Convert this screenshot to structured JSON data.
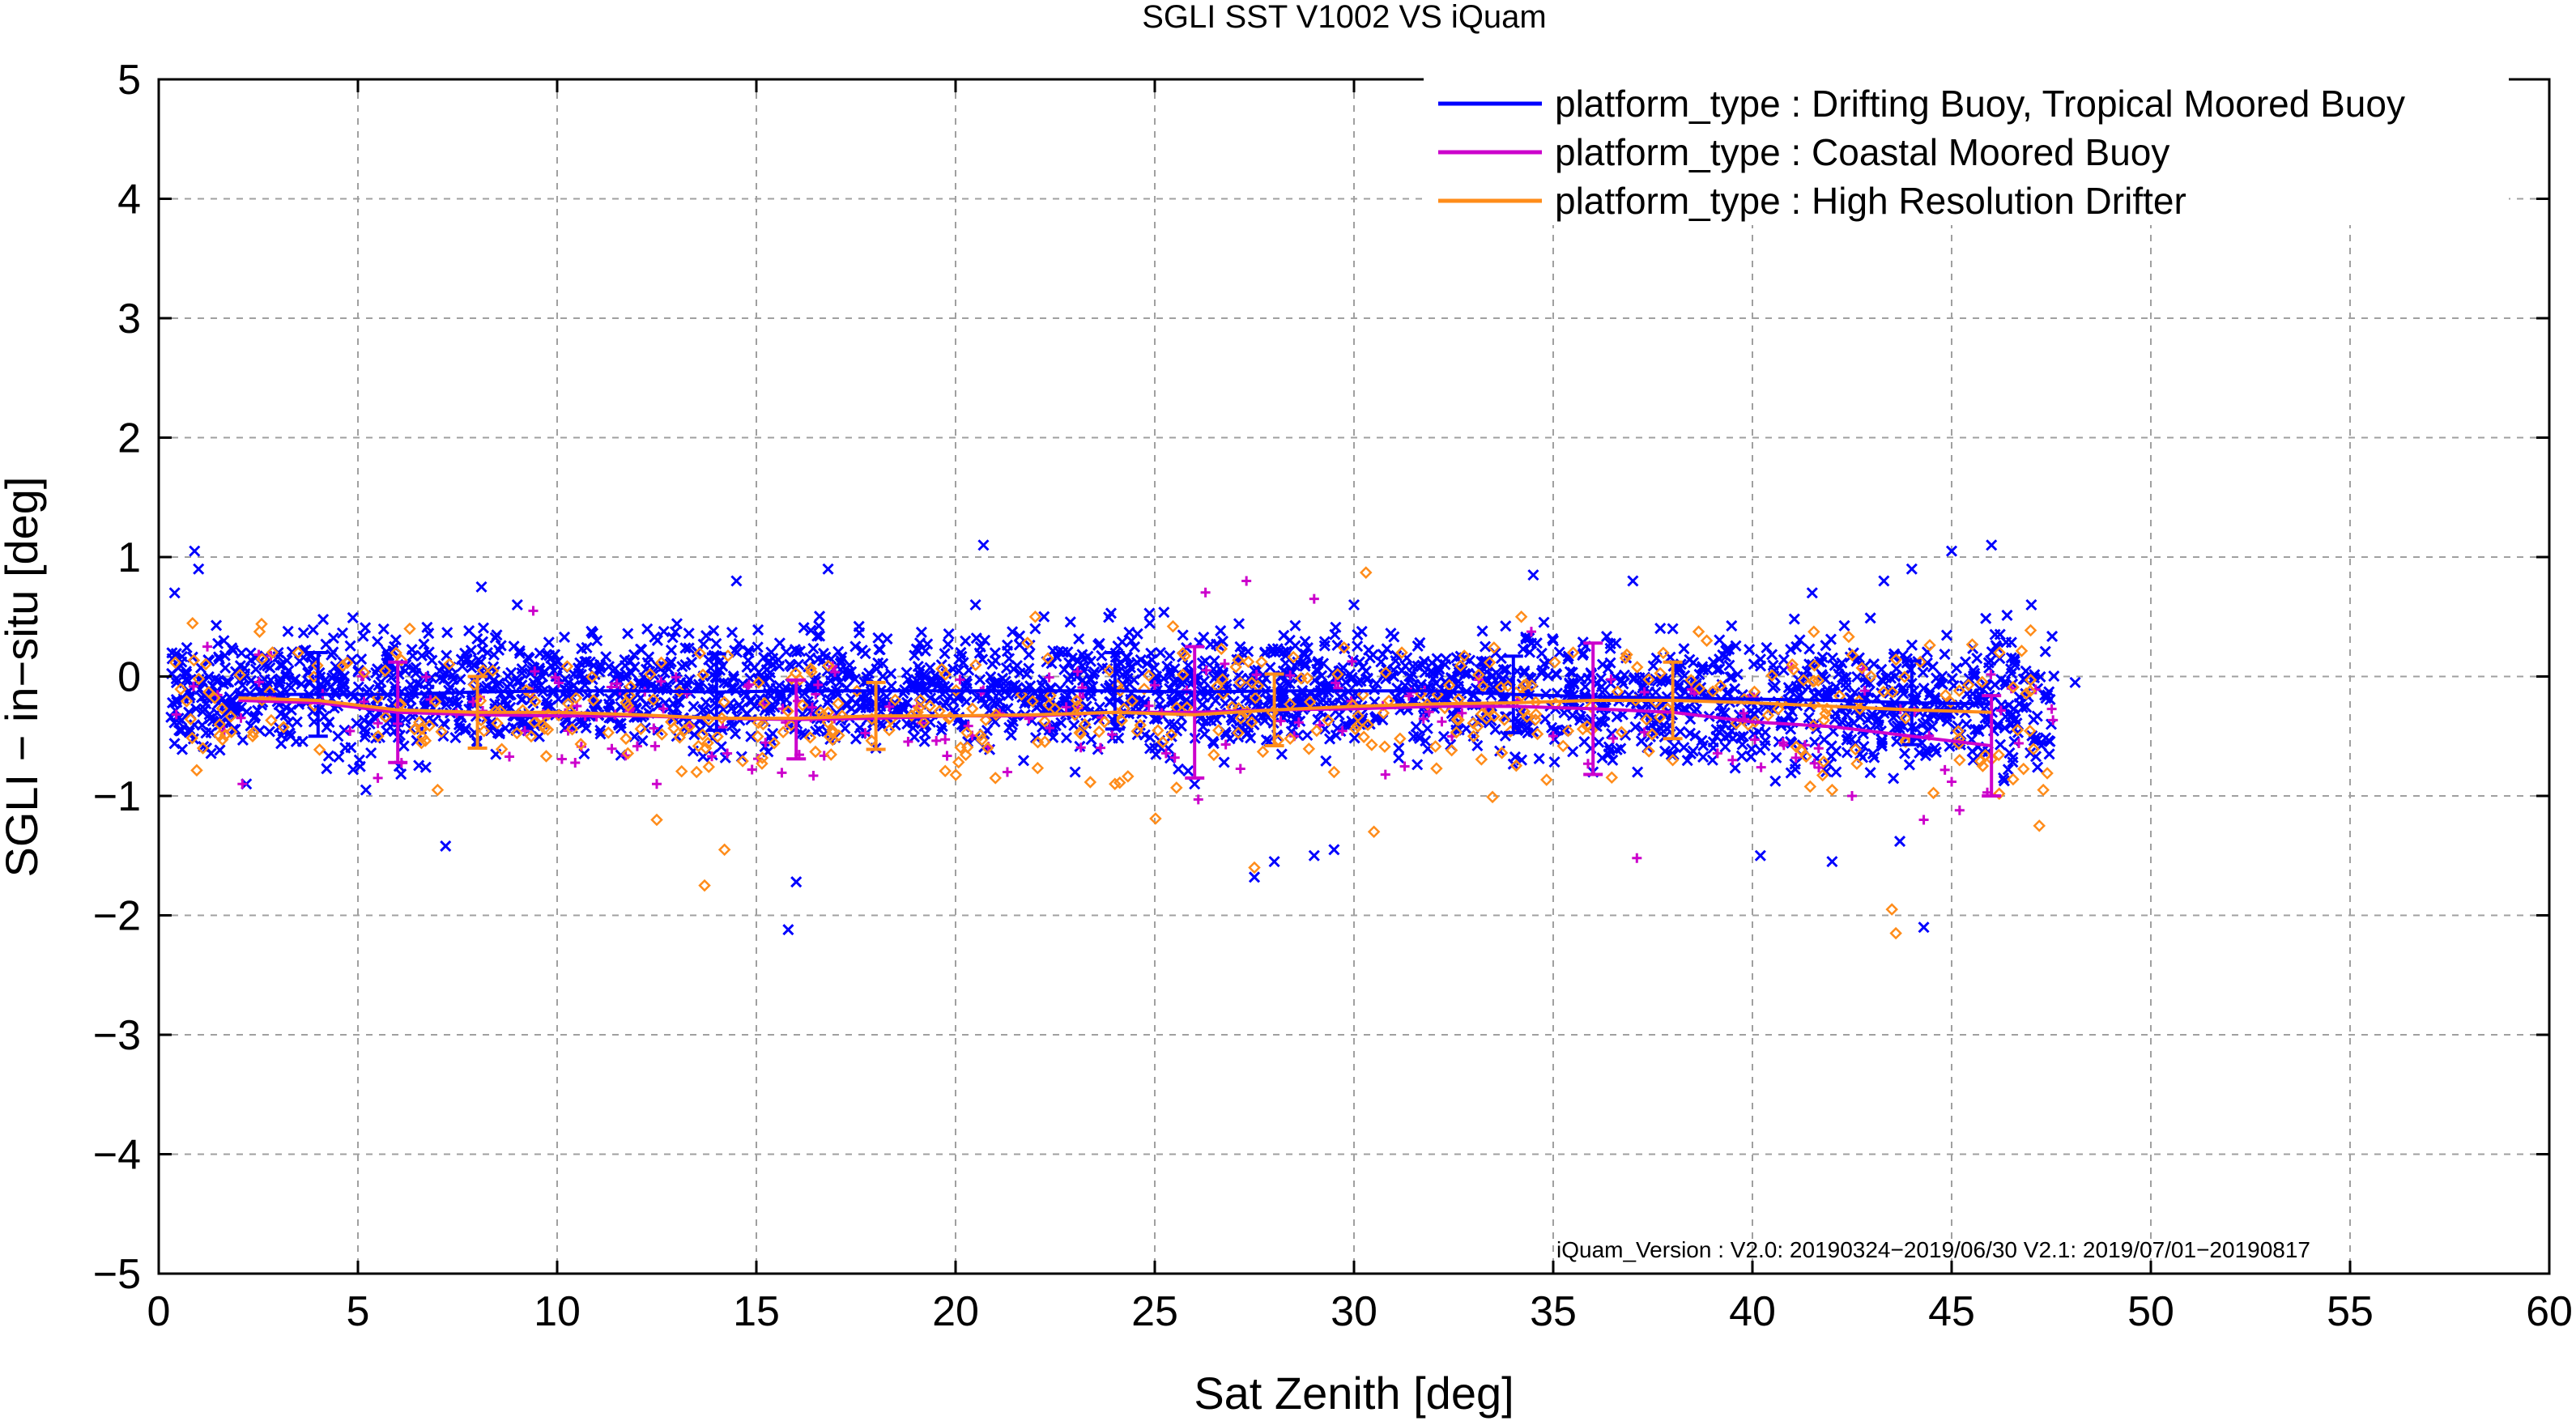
{
  "chart_data": {
    "type": "scatter",
    "title": "SGLI SST V1002 VS iQuam",
    "xlabel": "Sat Zenith [deg]",
    "ylabel": "SGLI − in−situ [deg]",
    "xlim": [
      0,
      60
    ],
    "ylim": [
      -5,
      5
    ],
    "x_ticks": [
      0,
      5,
      10,
      15,
      20,
      25,
      30,
      35,
      40,
      45,
      50,
      55,
      60
    ],
    "x_tick_labels": [
      "0",
      "5",
      "10",
      "15",
      "20",
      "25",
      "30",
      "35",
      "40",
      "45",
      "50",
      "55",
      "60"
    ],
    "y_ticks": [
      5,
      4,
      3,
      2,
      1,
      0,
      -1,
      -2,
      -3,
      -4,
      -5
    ],
    "y_tick_labels": [
      "5",
      "4",
      "3",
      "2",
      "1",
      "0",
      "−1",
      "−2",
      "−3",
      "−4",
      "−5"
    ],
    "grid": true,
    "legend_position": "top-right",
    "series": [
      {
        "name": "platform_type : Drifting Buoy, Tropical Moored Buoy",
        "color": "#0000ff",
        "marker": "x",
        "mean_x": [
          2,
          4,
          6,
          8,
          10,
          12,
          14,
          16,
          18,
          20,
          22,
          24,
          26,
          28,
          30,
          32,
          34,
          36,
          38,
          40,
          42,
          44,
          46
        ],
        "mean_y": [
          -0.15,
          -0.15,
          -0.15,
          -0.13,
          -0.12,
          -0.12,
          -0.13,
          -0.12,
          -0.12,
          -0.12,
          -0.12,
          -0.12,
          -0.13,
          -0.12,
          -0.12,
          -0.12,
          -0.15,
          -0.17,
          -0.18,
          -0.19,
          -0.2,
          -0.22,
          -0.23
        ],
        "std": [
          0.3,
          0.35,
          0.35,
          0.3,
          0.28,
          0.28,
          0.32,
          0.3,
          0.28,
          0.28,
          0.3,
          0.32,
          0.32,
          0.3,
          0.28,
          0.3,
          0.32,
          0.32,
          0.32,
          0.33,
          0.35,
          0.35,
          0.38
        ],
        "points": [
          [
            0.4,
            0.7
          ],
          [
            0.9,
            1.05
          ],
          [
            1.0,
            0.9
          ],
          [
            0.5,
            -0.35
          ],
          [
            1.2,
            -0.6
          ],
          [
            2.2,
            -0.9
          ],
          [
            3.0,
            0.2
          ],
          [
            4.5,
            -0.5
          ],
          [
            5.2,
            -0.95
          ],
          [
            7.2,
            -1.42
          ],
          [
            8.1,
            0.75
          ],
          [
            9.0,
            0.6
          ],
          [
            11.0,
            0.3
          ],
          [
            13.0,
            -0.5
          ],
          [
            14.5,
            0.8
          ],
          [
            15.5,
            -0.1
          ],
          [
            16.0,
            -1.72
          ],
          [
            15.8,
            -2.12
          ],
          [
            16.8,
            0.9
          ],
          [
            18.0,
            -0.6
          ],
          [
            20.5,
            0.6
          ],
          [
            20.7,
            1.1
          ],
          [
            22.0,
            0.4
          ],
          [
            23.0,
            -0.8
          ],
          [
            25.0,
            -0.6
          ],
          [
            26.0,
            -0.9
          ],
          [
            27.5,
            -1.68
          ],
          [
            28.0,
            -1.55
          ],
          [
            29.0,
            -1.5
          ],
          [
            29.5,
            -1.45
          ],
          [
            30.0,
            0.6
          ],
          [
            31.0,
            0.0
          ],
          [
            33.0,
            -0.5
          ],
          [
            34.5,
            0.85
          ],
          [
            35.0,
            0.3
          ],
          [
            36.0,
            -0.8
          ],
          [
            37.0,
            0.8
          ],
          [
            38.0,
            0.4
          ],
          [
            39.0,
            -0.7
          ],
          [
            40.2,
            -1.5
          ],
          [
            41.5,
            0.7
          ],
          [
            42.0,
            -1.55
          ],
          [
            43.3,
            0.8
          ],
          [
            43.7,
            -1.38
          ],
          [
            44.0,
            0.9
          ],
          [
            44.3,
            -2.1
          ],
          [
            45.0,
            1.05
          ],
          [
            45.7,
            -0.1
          ],
          [
            46.0,
            1.1
          ],
          [
            46.3,
            -0.85
          ],
          [
            47.0,
            0.6
          ],
          [
            47.5,
            -0.4
          ],
          [
            48.1,
            -0.05
          ]
        ]
      },
      {
        "name": "platform_type : Coastal Moored Buoy",
        "color": "#cc00cc",
        "marker": "+",
        "mean_x": [
          2,
          4,
          6,
          8,
          10,
          12,
          14,
          16,
          18,
          20,
          22,
          24,
          26,
          28,
          30,
          32,
          34,
          36,
          38,
          40,
          42,
          44,
          46
        ],
        "mean_y": [
          -0.2,
          -0.22,
          -0.3,
          -0.32,
          -0.33,
          -0.33,
          -0.35,
          -0.36,
          -0.35,
          -0.33,
          -0.33,
          -0.3,
          -0.3,
          -0.28,
          -0.27,
          -0.25,
          -0.25,
          -0.27,
          -0.3,
          -0.38,
          -0.42,
          -0.5,
          -0.58
        ],
        "std": [
          0.35,
          0.38,
          0.42,
          0.35,
          0.3,
          0.3,
          0.32,
          0.33,
          0.3,
          0.3,
          0.3,
          0.32,
          0.55,
          0.35,
          0.32,
          0.3,
          0.3,
          0.55,
          0.4,
          0.35,
          0.35,
          0.38,
          0.42
        ],
        "points": [
          [
            2.1,
            -0.9
          ],
          [
            5.5,
            -0.85
          ],
          [
            9.4,
            0.55
          ],
          [
            12.5,
            -0.9
          ],
          [
            21.3,
            -0.8
          ],
          [
            27.3,
            0.8
          ],
          [
            28.5,
            -0.5
          ],
          [
            29.0,
            0.65
          ],
          [
            34.1,
            -0.2
          ],
          [
            37.1,
            -1.52
          ],
          [
            39.5,
            -0.7
          ],
          [
            42.5,
            -1.0
          ],
          [
            44.3,
            -1.2
          ],
          [
            45.2,
            -1.12
          ],
          [
            46.5,
            -0.1
          ]
        ]
      },
      {
        "name": "platform_type : High Resolution Drifter",
        "color": "#ff8c1a",
        "marker": "diamond",
        "mean_x": [
          2,
          4,
          6,
          8,
          10,
          12,
          14,
          16,
          18,
          20,
          22,
          24,
          26,
          28,
          30,
          32,
          34,
          36,
          38,
          40,
          42,
          44,
          46
        ],
        "mean_y": [
          -0.18,
          -0.2,
          -0.28,
          -0.3,
          -0.3,
          -0.32,
          -0.35,
          -0.35,
          -0.33,
          -0.33,
          -0.32,
          -0.3,
          -0.32,
          -0.28,
          -0.25,
          -0.23,
          -0.22,
          -0.2,
          -0.2,
          -0.22,
          -0.25,
          -0.28,
          -0.3
        ],
        "std": [
          0.3,
          0.35,
          0.4,
          0.3,
          0.28,
          0.3,
          0.35,
          0.3,
          0.28,
          0.3,
          0.32,
          0.3,
          0.42,
          0.3,
          0.3,
          0.3,
          0.35,
          0.4,
          0.32,
          0.32,
          0.4,
          0.4,
          0.45
        ],
        "points": [
          [
            3.5,
            0.2
          ],
          [
            6.3,
            0.4
          ],
          [
            7.0,
            -0.95
          ],
          [
            12.5,
            -1.2
          ],
          [
            13.2,
            -0.45
          ],
          [
            13.5,
            -0.8
          ],
          [
            13.7,
            -1.75
          ],
          [
            14.2,
            -1.45
          ],
          [
            16.8,
            -0.3
          ],
          [
            21.0,
            -0.85
          ],
          [
            22.0,
            0.5
          ],
          [
            24.0,
            -0.9
          ],
          [
            25.2,
            -0.55
          ],
          [
            27.5,
            -1.6
          ],
          [
            29.5,
            -0.8
          ],
          [
            30.3,
            0.87
          ],
          [
            30.5,
            -1.3
          ],
          [
            31.2,
            0.2
          ],
          [
            33.0,
            -0.5
          ],
          [
            34.2,
            0.5
          ],
          [
            35.5,
            0.2
          ],
          [
            38.0,
            -0.7
          ],
          [
            41.0,
            0.1
          ],
          [
            42.0,
            -0.95
          ],
          [
            43.5,
            -1.95
          ],
          [
            43.6,
            -2.15
          ],
          [
            45.2,
            -0.7
          ],
          [
            46.2,
            0.2
          ],
          [
            47.2,
            -1.25
          ],
          [
            47.3,
            -0.95
          ]
        ]
      }
    ],
    "annotation": "iQuam_Version :   V2.0: 20190324−2019/06/30 V2.1: 2019/07/01−20190817"
  }
}
